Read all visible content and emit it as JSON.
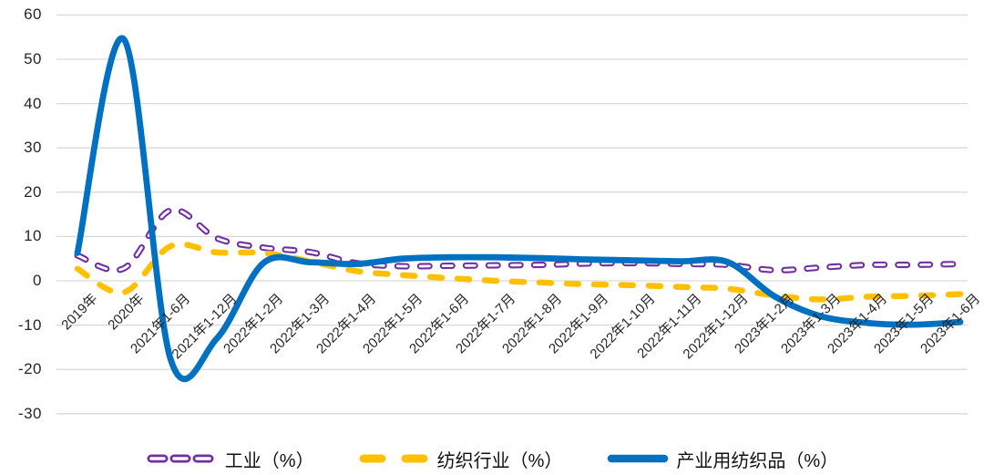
{
  "chart_data": {
    "type": "line",
    "title": "",
    "xlabel": "",
    "ylabel": "",
    "categories": [
      "2019年",
      "2020年",
      "2021年1-6月",
      "2021年1-12月",
      "2022年1-2月",
      "2022年1-3月",
      "2022年1-4月",
      "2022年1-5月",
      "2022年1-6月",
      "2022年1-7月",
      "2022年1-8月",
      "2022年1-9月",
      "2022年1-10月",
      "2022年1-11月",
      "2022年1-12月",
      "2023年1-2月",
      "2023年1-3月",
      "2023年1-4月",
      "2023年1-5月",
      "2023年1-6月"
    ],
    "series": [
      {
        "name": "工业（%）",
        "slug": "industry",
        "color": "#7030A0",
        "line_style": "dashed-hollow",
        "values": [
          5.7,
          2.8,
          15.9,
          9.6,
          7.5,
          6.5,
          4.0,
          3.3,
          3.4,
          3.5,
          3.6,
          3.9,
          4.0,
          3.8,
          3.6,
          2.4,
          3.0,
          3.6,
          3.6,
          3.8
        ]
      },
      {
        "name": "纺织行业（%）",
        "slug": "textile-industry",
        "color": "#FFC000",
        "line_style": "dashed",
        "values": [
          2.7,
          -2.6,
          7.8,
          6.4,
          6.3,
          4.4,
          2.2,
          1.3,
          0.6,
          0.0,
          -0.4,
          -0.8,
          -1.0,
          -1.4,
          -1.8,
          -3.3,
          -4.2,
          -3.6,
          -3.4,
          -3.0
        ]
      },
      {
        "name": "产业用纺织品（%）",
        "slug": "technical-textiles",
        "color": "#0070C0",
        "line_style": "solid",
        "values": [
          6.3,
          54.5,
          -17.5,
          -13.0,
          4.0,
          4.2,
          3.8,
          5.0,
          5.3,
          5.3,
          5.1,
          4.8,
          4.6,
          4.4,
          4.2,
          -3.5,
          -8.0,
          -9.5,
          -9.9,
          -9.3
        ]
      }
    ],
    "yticks": [
      60,
      50,
      40,
      30,
      20,
      10,
      0,
      -10,
      -20,
      -30
    ],
    "ylim": [
      -30,
      60
    ],
    "grid": "horizontal",
    "gridline_color": "#D9D9D9",
    "text_color": "#262626",
    "legend_position": "bottom"
  }
}
